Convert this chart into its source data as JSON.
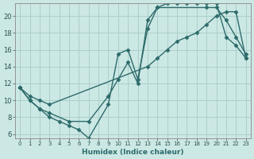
{
  "xlabel": "Humidex (Indice chaleur)",
  "bg_color": "#cce8e4",
  "grid_color": "#aacfcb",
  "line_color": "#2d6b6b",
  "marker": "D",
  "marker_size": 2.5,
  "line_width": 1.0,
  "xlim": [
    -0.5,
    23.5
  ],
  "ylim": [
    5.5,
    21.5
  ],
  "xticks": [
    0,
    1,
    2,
    3,
    4,
    5,
    6,
    7,
    8,
    9,
    10,
    11,
    12,
    13,
    14,
    15,
    16,
    17,
    18,
    19,
    20,
    21,
    22,
    23
  ],
  "yticks": [
    6,
    8,
    10,
    12,
    14,
    16,
    18,
    20
  ],
  "series": [
    {
      "x": [
        0,
        1,
        2,
        3,
        4,
        5,
        6,
        7,
        9,
        10,
        11,
        12,
        13,
        14,
        15,
        16,
        17,
        18,
        19,
        20,
        21,
        22,
        23
      ],
      "y": [
        11.5,
        10,
        9,
        8,
        7.5,
        7,
        6.5,
        5.5,
        9.5,
        15.5,
        16.0,
        12.5,
        18.5,
        21,
        21.5,
        21.5,
        21.5,
        21.5,
        21.5,
        21.5,
        17.5,
        16.5,
        15
      ]
    },
    {
      "x": [
        0,
        1,
        2,
        3,
        5,
        7,
        9,
        10,
        11,
        12,
        13,
        14,
        19,
        20,
        21,
        22,
        23
      ],
      "y": [
        11.5,
        10,
        9,
        8.5,
        7.5,
        7.5,
        10.5,
        12.5,
        14.5,
        12.0,
        19.5,
        21,
        21,
        21,
        19.5,
        17.5,
        15.5
      ]
    },
    {
      "x": [
        0,
        1,
        2,
        3,
        13,
        14,
        15,
        16,
        17,
        18,
        19,
        20,
        21,
        22,
        23
      ],
      "y": [
        11.5,
        10.5,
        10.0,
        9.5,
        14,
        15,
        16,
        17,
        17.5,
        18,
        19,
        20,
        20.5,
        20.5,
        15
      ]
    }
  ]
}
